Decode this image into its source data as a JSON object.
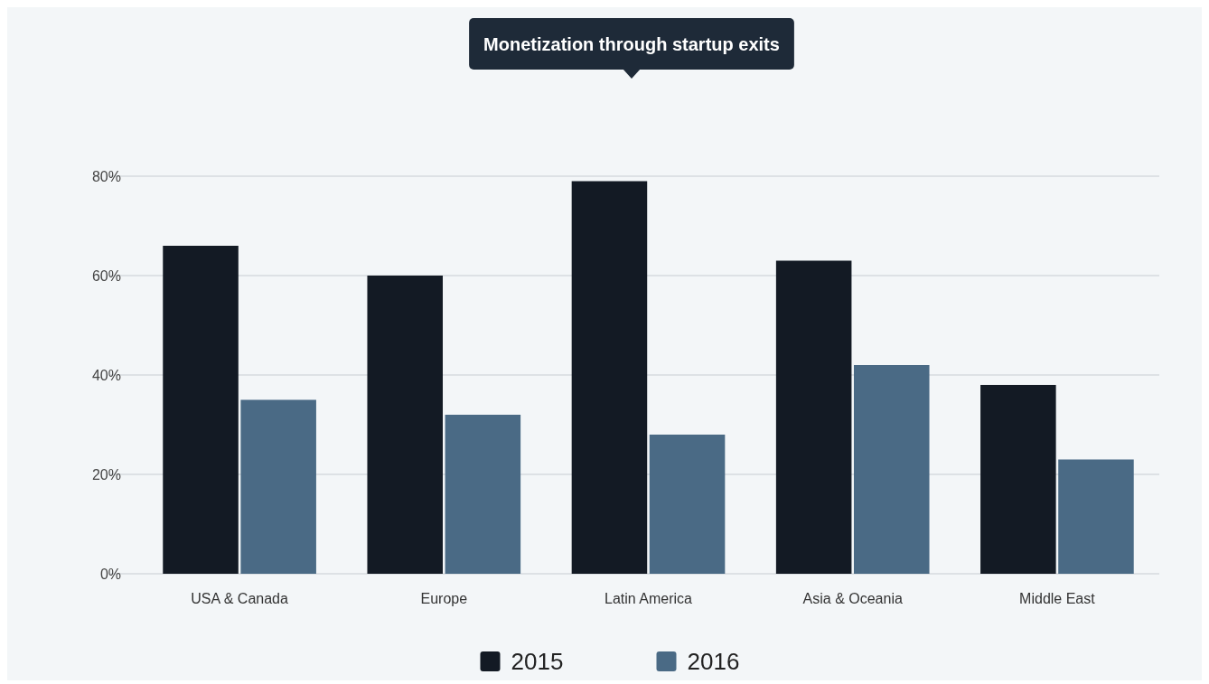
{
  "chart_data": {
    "type": "bar",
    "title": "Monetization through startup exits",
    "categories": [
      "USA & Canada",
      "Europe",
      "Latin America",
      "Asia & Oceania",
      "Middle East"
    ],
    "series": [
      {
        "name": "2015",
        "color": "#131a24",
        "values": [
          66,
          60,
          79,
          63,
          38
        ]
      },
      {
        "name": "2016",
        "color": "#4a6a85",
        "values": [
          35,
          32,
          28,
          42,
          23
        ]
      }
    ],
    "ylim": [
      0,
      80
    ],
    "yticks": [
      {
        "value": 0,
        "label": "0%"
      },
      {
        "value": 20,
        "label": "20%"
      },
      {
        "value": 40,
        "label": "40%"
      },
      {
        "value": 60,
        "label": "60%"
      },
      {
        "value": 80,
        "label": "80%"
      }
    ],
    "grid": "y",
    "legend": "bottom"
  }
}
